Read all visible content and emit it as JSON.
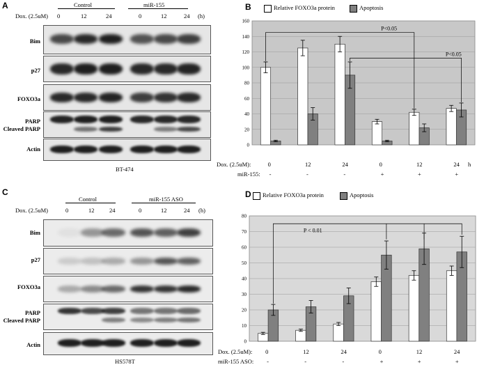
{
  "panelA": {
    "label": "A",
    "dox_label": "Dox. (2.5uM)",
    "unit": "(h)",
    "groups": [
      "Control",
      "miR-155"
    ],
    "times": [
      "0",
      "12",
      "24",
      "0",
      "12",
      "24"
    ],
    "rows": [
      "Bim",
      "p27",
      "FOXO3a",
      "PARP",
      "Cleaved PARP",
      "Actin"
    ],
    "cell_line": "BT-474"
  },
  "panelB": {
    "label": "B",
    "legend": [
      "Relative FOXO3a protein",
      "Apoptosis"
    ],
    "dox_label": "Dox. (2.5uM):",
    "cond_label": "miR-155:",
    "unit": "h",
    "times": [
      "0",
      "12",
      "24",
      "0",
      "12",
      "24"
    ],
    "signs": [
      "-",
      "-",
      "-",
      "+",
      "+",
      "+"
    ],
    "annotations": [
      "P<0.05",
      "P<0.05"
    ]
  },
  "panelC": {
    "label": "C",
    "dox_label": "Dox. (2.5uM)",
    "unit": "(h)",
    "groups": [
      "Control",
      "miR-155 ASO"
    ],
    "times": [
      "0",
      "12",
      "24",
      "0",
      "12",
      "24"
    ],
    "rows": [
      "Bim",
      "p27",
      "FOXO3a",
      "PARP",
      "Cleaved PARP",
      "Actin"
    ],
    "cell_line": "HS578T"
  },
  "panelD": {
    "label": "D",
    "legend": [
      "Relative FOXO3a protein",
      "Apoptosis"
    ],
    "dox_label": "Dox. (2.5uM):",
    "cond_label": "miR-155 ASO:",
    "times": [
      "0",
      "12",
      "24",
      "0",
      "12",
      "24"
    ],
    "signs": [
      "-",
      "-",
      "-",
      "+",
      "+",
      "+"
    ],
    "annotations": [
      "P < 0.01"
    ]
  },
  "chart_data": [
    {
      "panel": "B",
      "type": "bar",
      "categories": [
        "0 -",
        "12 -",
        "24 -",
        "0 +",
        "12 +",
        "24 +"
      ],
      "series": [
        {
          "name": "Relative FOXO3a protein",
          "values": [
            100,
            125,
            130,
            30,
            42,
            47
          ],
          "errors": [
            7,
            10,
            10,
            3,
            4,
            4
          ],
          "color": "#ffffff"
        },
        {
          "name": "Apoptosis",
          "values": [
            5,
            40,
            90,
            5,
            22,
            45
          ],
          "errors": [
            1,
            8,
            17,
            1,
            5,
            9
          ],
          "color": "#808080"
        }
      ],
      "ylim": [
        0,
        160
      ],
      "yticks": [
        0,
        20,
        40,
        60,
        80,
        100,
        120,
        140,
        160
      ],
      "grid": true,
      "legend_position": "top"
    },
    {
      "panel": "D",
      "type": "bar",
      "categories": [
        "0 -",
        "12 -",
        "24 -",
        "0 +",
        "12 +",
        "24 +"
      ],
      "series": [
        {
          "name": "Relative FOXO3a protein",
          "values": [
            5,
            7,
            11,
            38,
            42,
            45
          ],
          "errors": [
            0.7,
            0.7,
            1,
            3,
            3,
            3
          ],
          "color": "#ffffff"
        },
        {
          "name": "Apoptosis",
          "values": [
            20,
            22,
            29,
            55,
            59,
            57
          ],
          "errors": [
            3.5,
            4,
            5,
            9,
            10,
            10
          ],
          "color": "#808080"
        }
      ],
      "ylim": [
        0,
        80
      ],
      "yticks": [
        0,
        10,
        20,
        30,
        40,
        50,
        60,
        70,
        80
      ],
      "grid": true,
      "legend_position": "top"
    }
  ]
}
